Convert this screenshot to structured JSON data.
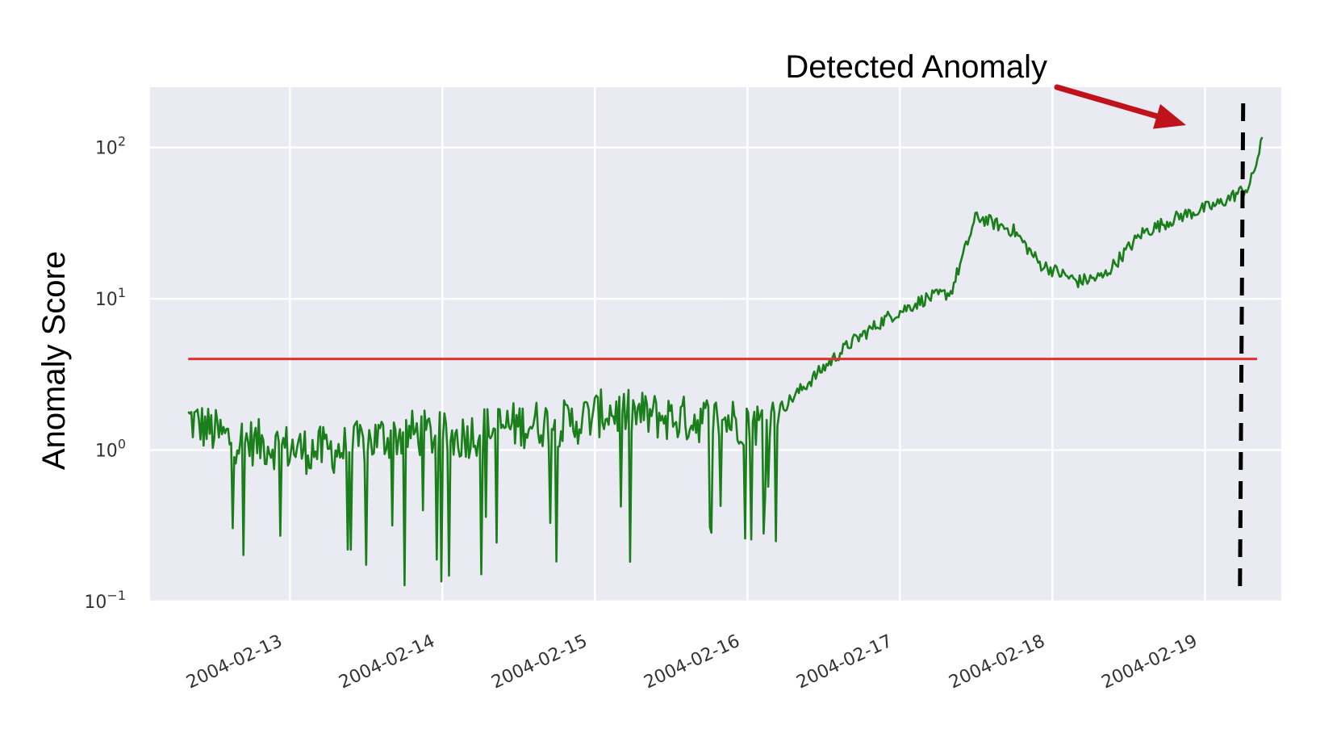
{
  "chart_data": {
    "type": "line",
    "title": "",
    "xlabel": "",
    "ylabel": "Anomaly Score",
    "y_scale": "log",
    "ylim": [
      0.1,
      250
    ],
    "xlim": [
      "2004-02-12 02:00",
      "2004-02-19 12:00"
    ],
    "grid": true,
    "legend": "none",
    "x_ticks": [
      "2004-02-13",
      "2004-02-14",
      "2004-02-15",
      "2004-02-16",
      "2004-02-17",
      "2004-02-18",
      "2004-02-19"
    ],
    "y_ticks": [
      {
        "value": 0.1,
        "base": "10",
        "exp": "−1"
      },
      {
        "value": 1,
        "base": "10",
        "exp": "0"
      },
      {
        "value": 10,
        "base": "10",
        "exp": "1"
      },
      {
        "value": 100,
        "base": "10",
        "exp": "2"
      }
    ],
    "series": [
      {
        "color": "#1a7f1a",
        "x": [
          "2004-02-12 08:00",
          "2004-02-12 14:00",
          "2004-02-12 20:00",
          "2004-02-13 02:00",
          "2004-02-13 08:00",
          "2004-02-13 14:00",
          "2004-02-13 20:00",
          "2004-02-14 02:00",
          "2004-02-14 08:00",
          "2004-02-14 14:00",
          "2004-02-14 20:00",
          "2004-02-15 02:00",
          "2004-02-15 08:00",
          "2004-02-15 14:00",
          "2004-02-15 20:00",
          "2004-02-16 02:00",
          "2004-02-16 06:00",
          "2004-02-16 12:00",
          "2004-02-16 16:00",
          "2004-02-16 22:00",
          "2004-02-17 04:00",
          "2004-02-17 08:00",
          "2004-02-17 12:00",
          "2004-02-17 18:00",
          "2004-02-17 22:00",
          "2004-02-18 04:00",
          "2004-02-18 08:00",
          "2004-02-18 14:00",
          "2004-02-18 20:00",
          "2004-02-19 02:00",
          "2004-02-19 07:00",
          "2004-02-19 09:00"
        ],
        "y": [
          1.6,
          1.2,
          1.1,
          1.0,
          1.0,
          1.2,
          1.3,
          1.2,
          1.4,
          1.5,
          1.5,
          1.8,
          1.7,
          1.6,
          1.6,
          1.5,
          2.0,
          3.5,
          5.0,
          7.5,
          10,
          11,
          35,
          28,
          17,
          13,
          14,
          27,
          35,
          42,
          55,
          110
        ]
      }
    ],
    "threshold": {
      "value": 4.0,
      "color": "#e03030"
    },
    "detection_marker": {
      "x": "2004-02-19 06:00",
      "style": "dashed",
      "color": "#000000"
    },
    "annotation": {
      "text": "Detected Anomaly",
      "arrow_color": "#c0121b"
    },
    "background_color": "#eaeaf2"
  }
}
